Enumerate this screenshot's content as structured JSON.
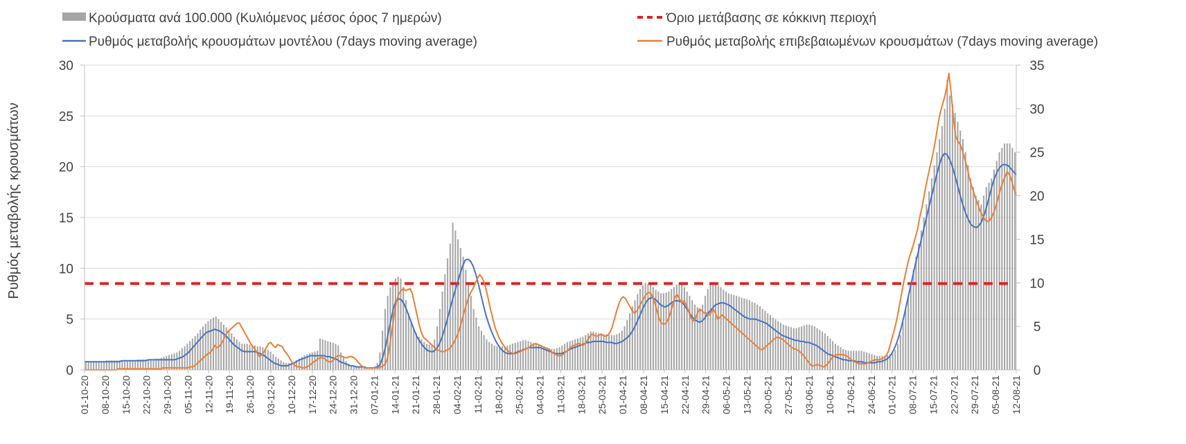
{
  "chart_data": {
    "type": "bar+line",
    "title": "",
    "ylabel_left": "Ρυθμός μεταβολής κρουσμάτων",
    "ylim_left": [
      0,
      30
    ],
    "yticks_left": [
      0,
      5,
      10,
      15,
      20,
      25,
      30
    ],
    "ylim_right": [
      0,
      35
    ],
    "yticks_right": [
      0,
      5,
      10,
      15,
      20,
      25,
      30,
      35
    ],
    "grid": true,
    "legend": {
      "placement": "top",
      "items": [
        {
          "key": "bars",
          "label": "Κρούσματα ανά 100.000 (Κυλιόμενος μέσος όρος 7 ημερών)",
          "color": "#a6a6a6",
          "style": "bar"
        },
        {
          "key": "threshold",
          "label": "Όριο μετάβασης σε κόκκινη περιοχή",
          "color": "#e02020",
          "style": "dashed"
        },
        {
          "key": "model",
          "label": "Ρυθμός μεταβολής κρουσμάτων μοντέλου (7days moving average)",
          "color": "#4472c4",
          "style": "line"
        },
        {
          "key": "confirmed",
          "label": "Ρυθμός μεταβολής επιβεβαιωμένων κρουσμάτων (7days moving average)",
          "color": "#ed7d31",
          "style": "line"
        }
      ]
    },
    "x_tick_labels": [
      "01-10-20",
      "08-10-20",
      "15-10-20",
      "22-10-20",
      "29-10-20",
      "05-11-20",
      "12-11-20",
      "19-11-20",
      "26-11-20",
      "03-12-20",
      "10-12-20",
      "17-12-20",
      "24-12-20",
      "31-12-20",
      "07-01-21",
      "14-01-21",
      "21-01-21",
      "28-01-21",
      "04-02-21",
      "11-02-21",
      "18-02-21",
      "25-02-21",
      "04-03-21",
      "11-03-21",
      "18-03-21",
      "25-03-21",
      "01-04-21",
      "08-04-21",
      "15-04-21",
      "22-04-21",
      "29-04-21",
      "06-05-21",
      "13-05-21",
      "20-05-21",
      "27-05-21",
      "03-06-21",
      "10-06-21",
      "17-06-21",
      "24-06-21",
      "01-07-21",
      "08-07-21",
      "15-07-21",
      "22-07-21",
      "29-07-21",
      "05-08-21",
      "12-08-21"
    ],
    "threshold_left_value": 8.5,
    "series": [
      {
        "name": "Κρούσματα ανά 100.000 (Κυλιόμενος μέσος όρος 7 ημερών)",
        "axis": "right",
        "type": "bar",
        "values": [
          1.0,
          1.0,
          1.0,
          1.0,
          1.0,
          1.0,
          1.0,
          1.0,
          1.1,
          1.1,
          1.1,
          1.1,
          1.1,
          1.1,
          1.1,
          1.1,
          1.1,
          1.1,
          1.1,
          1.1,
          1.2,
          1.2,
          1.2,
          1.2,
          1.2,
          1.2,
          1.2,
          1.3,
          1.3,
          1.4,
          1.5,
          1.6,
          1.7,
          1.8,
          1.9,
          2.0,
          2.2,
          2.5,
          2.7,
          3.0,
          3.3,
          3.6,
          3.9,
          4.2,
          4.6,
          5.0,
          5.3,
          5.6,
          5.8,
          6.0,
          6.1,
          5.8,
          5.5,
          5.2,
          4.9,
          4.6,
          4.2,
          3.8,
          3.5,
          3.2,
          3.0,
          3.0,
          3.0,
          2.9,
          2.8,
          2.8,
          2.7,
          2.7,
          2.6,
          2.5,
          2.3,
          2.1,
          1.8,
          1.5,
          1.3,
          1.1,
          0.9,
          0.8,
          0.8,
          0.8,
          0.9,
          1.1,
          1.3,
          1.5,
          1.7,
          1.8,
          1.9,
          2.0,
          2.1,
          2.2,
          3.6,
          3.5,
          3.4,
          3.3,
          3.2,
          3.1,
          3.0,
          2.8,
          2.0,
          1.5,
          1.0,
          0.7,
          0.5,
          0.4,
          0.4,
          0.3,
          0.3,
          0.3,
          0.3,
          0.3,
          0.3,
          0.4,
          0.8,
          2.0,
          4.5,
          7.0,
          8.5,
          9.5,
          10.0,
          10.5,
          10.7,
          10.5,
          9.5,
          8.0,
          6.5,
          5.5,
          4.7,
          4.2,
          3.8,
          3.5,
          3.2,
          3.0,
          2.9,
          2.8,
          3.5,
          5.0,
          7.0,
          9.0,
          11.0,
          12.8,
          14.5,
          16.9,
          16.0,
          15.0,
          14.0,
          13.0,
          11.5,
          10.0,
          8.5,
          7.0,
          6.0,
          5.0,
          4.5,
          4.0,
          3.5,
          3.2,
          3.0,
          2.8,
          2.7,
          2.7,
          2.7,
          2.7,
          2.8,
          2.9,
          3.0,
          3.1,
          3.2,
          3.3,
          3.4,
          3.4,
          3.3,
          3.2,
          3.1,
          3.0,
          2.9,
          2.8,
          2.7,
          2.6,
          2.5,
          2.4,
          2.4,
          2.5,
          2.6,
          2.8,
          3.0,
          3.2,
          3.3,
          3.4,
          3.5,
          3.6,
          3.7,
          3.8,
          4.0,
          4.2,
          4.4,
          4.4,
          4.3,
          4.2,
          4.2,
          4.1,
          4.1,
          4.0,
          4.0,
          4.0,
          4.1,
          4.2,
          4.5,
          5.0,
          5.7,
          6.5,
          7.3,
          8.0,
          8.7,
          9.3,
          9.7,
          10.0,
          9.9,
          9.8,
          9.5,
          9.2,
          9.0,
          8.8,
          8.8,
          8.9,
          9.0,
          9.3,
          9.5,
          9.8,
          10.0,
          9.8,
          9.5,
          9.0,
          8.5,
          8.0,
          7.5,
          7.2,
          7.0,
          7.5,
          8.5,
          9.3,
          9.8,
          10.0,
          9.9,
          9.7,
          9.5,
          9.2,
          9.0,
          8.8,
          8.7,
          8.6,
          8.5,
          8.4,
          8.3,
          8.2,
          8.1,
          8.0,
          7.8,
          7.7,
          7.5,
          7.3,
          7.0,
          6.8,
          6.5,
          6.3,
          6.0,
          5.8,
          5.6,
          5.4,
          5.2,
          5.1,
          5.0,
          4.9,
          4.8,
          4.8,
          4.9,
          5.0,
          5.1,
          5.2,
          5.2,
          5.1,
          5.0,
          4.8,
          4.6,
          4.4,
          4.2,
          3.9,
          3.6,
          3.3,
          3.0,
          2.8,
          2.6,
          2.4,
          2.3,
          2.2,
          2.2,
          2.2,
          2.2,
          2.2,
          2.2,
          2.1,
          2.0,
          1.9,
          1.8,
          1.7,
          1.6,
          1.6,
          1.6,
          1.6,
          1.7,
          1.8,
          2.0,
          2.3,
          3.0,
          4.0,
          5.5,
          7.0,
          8.5,
          10.0,
          11.5,
          13.0,
          14.5,
          16.0,
          17.5,
          19.0,
          20.5,
          22.0,
          23.5,
          25.0,
          26.5,
          28.0,
          30.0,
          33.3,
          31.5,
          30.5,
          29.5,
          28.5,
          27.5,
          26.5,
          25.0,
          23.5,
          22.0,
          21.0,
          20.0,
          19.5,
          19.0,
          20.0,
          21.0,
          21.5,
          22.0,
          23.0,
          24.0,
          25.0,
          25.5,
          26.0,
          26.0,
          26.0,
          25.5,
          25.0
        ]
      },
      {
        "name": "Ρυθμός μεταβολής κρουσμάτων μοντέλου (7days moving average)",
        "axis": "left",
        "type": "line",
        "values": [
          0.8,
          0.8,
          0.8,
          0.8,
          0.8,
          0.8,
          0.8,
          0.8,
          0.8,
          0.8,
          0.8,
          0.8,
          0.8,
          0.8,
          0.9,
          0.9,
          0.9,
          0.9,
          0.9,
          0.9,
          0.9,
          0.9,
          0.9,
          0.9,
          1.0,
          1.0,
          1.0,
          1.0,
          1.0,
          1.0,
          1.0,
          1.0,
          1.0,
          1.0,
          1.0,
          1.1,
          1.2,
          1.3,
          1.5,
          1.7,
          2.0,
          2.3,
          2.6,
          2.9,
          3.2,
          3.5,
          3.7,
          3.8,
          3.9,
          4.0,
          3.9,
          3.8,
          3.6,
          3.4,
          3.1,
          2.8,
          2.5,
          2.3,
          2.1,
          1.9,
          1.8,
          1.8,
          1.8,
          1.8,
          1.8,
          1.7,
          1.6,
          1.5,
          1.3,
          1.1,
          0.9,
          0.7,
          0.6,
          0.5,
          0.4,
          0.4,
          0.4,
          0.5,
          0.6,
          0.7,
          0.9,
          1.0,
          1.1,
          1.2,
          1.3,
          1.4,
          1.4,
          1.4,
          1.4,
          1.4,
          1.4,
          1.3,
          1.3,
          1.2,
          1.1,
          1.0,
          0.8,
          0.7,
          0.6,
          0.5,
          0.4,
          0.4,
          0.3,
          0.3,
          0.3,
          0.3,
          0.2,
          0.2,
          0.2,
          0.2,
          0.3,
          0.5,
          1.2,
          2.2,
          3.5,
          4.8,
          6.0,
          6.8,
          7.0,
          6.9,
          6.5,
          5.9,
          5.2,
          4.5,
          3.8,
          3.2,
          2.8,
          2.4,
          2.1,
          1.9,
          1.8,
          1.8,
          2.0,
          2.4,
          3.0,
          3.8,
          4.7,
          5.7,
          6.7,
          7.6,
          8.5,
          9.4,
          10.2,
          10.8,
          10.9,
          10.7,
          10.2,
          9.4,
          8.4,
          7.3,
          6.2,
          5.2,
          4.4,
          3.7,
          3.1,
          2.6,
          2.2,
          1.9,
          1.7,
          1.6,
          1.6,
          1.6,
          1.7,
          1.8,
          1.9,
          2.0,
          2.1,
          2.2,
          2.2,
          2.2,
          2.2,
          2.2,
          2.1,
          2.0,
          1.9,
          1.8,
          1.7,
          1.6,
          1.6,
          1.6,
          1.7,
          1.8,
          2.0,
          2.1,
          2.2,
          2.3,
          2.4,
          2.5,
          2.6,
          2.7,
          2.7,
          2.8,
          2.8,
          2.8,
          2.8,
          2.8,
          2.7,
          2.7,
          2.7,
          2.6,
          2.6,
          2.7,
          2.8,
          3.0,
          3.2,
          3.5,
          3.9,
          4.4,
          5.0,
          5.6,
          6.2,
          6.7,
          7.0,
          7.1,
          7.0,
          6.8,
          6.5,
          6.3,
          6.2,
          6.3,
          6.5,
          6.7,
          6.8,
          6.8,
          6.7,
          6.5,
          6.1,
          5.7,
          5.3,
          5.0,
          4.8,
          4.7,
          4.8,
          5.1,
          5.5,
          5.8,
          6.1,
          6.4,
          6.5,
          6.6,
          6.6,
          6.5,
          6.4,
          6.2,
          6.0,
          5.8,
          5.6,
          5.4,
          5.2,
          5.1,
          5.0,
          5.0,
          5.0,
          4.9,
          4.8,
          4.7,
          4.6,
          4.4,
          4.2,
          4.0,
          3.8,
          3.6,
          3.4,
          3.3,
          3.2,
          3.1,
          3.0,
          2.9,
          2.9,
          2.8,
          2.8,
          2.7,
          2.7,
          2.6,
          2.5,
          2.4,
          2.2,
          2.0,
          1.8,
          1.6,
          1.5,
          1.4,
          1.3,
          1.2,
          1.1,
          1.0,
          1.0,
          0.9,
          0.9,
          0.9,
          0.8,
          0.8,
          0.8,
          0.7,
          0.7,
          0.7,
          0.7,
          0.7,
          0.8,
          0.8,
          0.9,
          1.0,
          1.2,
          1.5,
          2.0,
          2.6,
          3.4,
          4.4,
          5.5,
          6.7,
          7.9,
          9.1,
          10.3,
          11.4,
          12.5,
          13.6,
          14.7,
          15.8,
          16.9,
          18.0,
          19.1,
          20.1,
          20.9,
          21.3,
          21.2,
          20.7,
          20.0,
          19.1,
          18.1,
          17.1,
          16.2,
          15.4,
          14.8,
          14.3,
          14.1,
          14.0,
          14.2,
          14.6,
          15.3,
          16.2,
          17.2,
          18.2,
          19.0,
          19.6,
          20.0,
          20.2,
          20.2,
          20.1,
          19.8,
          19.5,
          19.2
        ]
      },
      {
        "name": "Ρυθμός μεταβολής επιβεβαιωμένων κρουσμάτων (7days moving average)",
        "axis": "left",
        "type": "line",
        "values": [
          0.0,
          0.0,
          0.0,
          0.0,
          0.0,
          0.0,
          0.0,
          0.0,
          0.0,
          0.0,
          0.0,
          0.0,
          0.0,
          0.0,
          0.0,
          0.1,
          0.1,
          0.1,
          0.1,
          0.1,
          0.1,
          0.1,
          0.1,
          0.1,
          0.1,
          0.1,
          0.1,
          0.1,
          0.1,
          0.1,
          0.1,
          0.1,
          0.1,
          0.1,
          0.1,
          0.2,
          0.2,
          0.2,
          0.2,
          0.2,
          0.2,
          0.2,
          0.2,
          0.2,
          0.2,
          0.2,
          0.2,
          0.3,
          0.3,
          0.4,
          0.6,
          0.8,
          1.0,
          1.2,
          1.4,
          1.6,
          1.7,
          2.0,
          2.4,
          2.2,
          2.3,
          2.6,
          3.0,
          3.5,
          3.8,
          4.0,
          4.2,
          4.4,
          4.6,
          4.6,
          4.2,
          3.8,
          3.4,
          3.0,
          2.6,
          2.3,
          2.0,
          1.6,
          1.3,
          1.5,
          1.8,
          2.2,
          2.6,
          2.7,
          2.4,
          2.2,
          2.5,
          2.4,
          2.3,
          1.9,
          1.6,
          1.3,
          0.9,
          0.6,
          0.4,
          0.3,
          0.3,
          0.2,
          0.2,
          0.3,
          0.4,
          0.6,
          0.8,
          0.9,
          1.1,
          1.2,
          1.2,
          1.1,
          0.9,
          0.8,
          0.8,
          1.0,
          1.3,
          1.4,
          1.4,
          1.3,
          1.2,
          1.2,
          1.3,
          1.3,
          1.2,
          1.0,
          0.7,
          0.5,
          0.3,
          0.2,
          0.2,
          0.2,
          0.2,
          0.2,
          0.2,
          0.2,
          0.3,
          0.4,
          0.6,
          1.2,
          2.5,
          4.0,
          5.5,
          6.8,
          7.5,
          7.8,
          8.0,
          7.8,
          7.9,
          8.0,
          7.5,
          6.5,
          5.5,
          4.5,
          3.7,
          3.2,
          3.0,
          2.8,
          2.6,
          2.4,
          2.2,
          2.0,
          1.9,
          1.8,
          1.8,
          1.9,
          2.0,
          2.2,
          2.5,
          2.9,
          3.4,
          4.0,
          4.8,
          5.6,
          6.4,
          7.1,
          7.6,
          8.0,
          8.5,
          9.0,
          9.4,
          9.1,
          8.6,
          7.8,
          6.8,
          5.8,
          4.9,
          4.1,
          3.5,
          3.0,
          2.6,
          2.3,
          2.0,
          1.8,
          1.7,
          1.6,
          1.6,
          1.7,
          1.8,
          1.9,
          2.0,
          2.1,
          2.2,
          2.4,
          2.5,
          2.6,
          2.5,
          2.4,
          2.3,
          2.2,
          2.1,
          2.0,
          1.8,
          1.6,
          1.5,
          1.4,
          1.4,
          1.5,
          1.7,
          1.9,
          2.1,
          2.3,
          2.4,
          2.5,
          2.6,
          2.5,
          2.4,
          2.6,
          2.9,
          3.3,
          3.5,
          3.4,
          3.3,
          3.4,
          3.5,
          3.4,
          3.3,
          3.4,
          3.7,
          4.2,
          5.0,
          5.8,
          6.5,
          7.0,
          7.2,
          7.0,
          6.6,
          6.2,
          5.8,
          5.6,
          5.8,
          6.2,
          6.6,
          7.0,
          7.4,
          7.6,
          7.6,
          7.2,
          6.6,
          5.8,
          5.0,
          4.6,
          4.5,
          4.6,
          5.0,
          5.6,
          6.4,
          7.2,
          7.4,
          7.0,
          6.6,
          6.8,
          6.4,
          5.8,
          5.2,
          4.8,
          5.0,
          5.6,
          6.0,
          5.8,
          5.6,
          5.6,
          5.4,
          5.6,
          6.0,
          5.6,
          5.0,
          5.2,
          5.4,
          5.2,
          5.0,
          4.8,
          4.6,
          4.4,
          4.2,
          4.0,
          3.8,
          3.6,
          3.4,
          3.2,
          3.0,
          2.8,
          2.6,
          2.4,
          2.2,
          2.0,
          2.0,
          2.2,
          2.4,
          2.6,
          2.8,
          3.0,
          3.2,
          3.2,
          3.1,
          3.0,
          2.8,
          2.6,
          2.4,
          2.2,
          2.1,
          2.0,
          1.9,
          1.7,
          1.5,
          1.2,
          0.9,
          0.6,
          0.4,
          0.4,
          0.5,
          0.5,
          0.4,
          0.3,
          0.4,
          0.6,
          0.9,
          1.2,
          1.4,
          1.5,
          1.5,
          1.5,
          1.5,
          1.4,
          1.3,
          1.1,
          0.9,
          0.8,
          0.7,
          0.6,
          0.6,
          0.6,
          0.6,
          0.7,
          0.8,
          0.9,
          1.0,
          1.0,
          1.0,
          1.1,
          1.2,
          1.4,
          1.8,
          2.6,
          3.4,
          4.2,
          5.2,
          6.4,
          7.6,
          8.8,
          9.8,
          10.8,
          11.5,
          12.2,
          13.0,
          13.8,
          15.0,
          16.0,
          17.2,
          18.4,
          19.4,
          20.4,
          21.4,
          22.6,
          24.0,
          25.2,
          26.0,
          26.8,
          27.8,
          29.2,
          27.2,
          24.8,
          23.0,
          22.5,
          22.2,
          21.6,
          20.8,
          20.0,
          19.0,
          18.2,
          17.5,
          16.8,
          16.2,
          15.6,
          15.2,
          14.8,
          14.6,
          14.7,
          15.0,
          15.5,
          16.2,
          17.0,
          17.8,
          18.5,
          19.0,
          19.5,
          19.2,
          18.6,
          17.8,
          17.2
        ]
      }
    ]
  }
}
